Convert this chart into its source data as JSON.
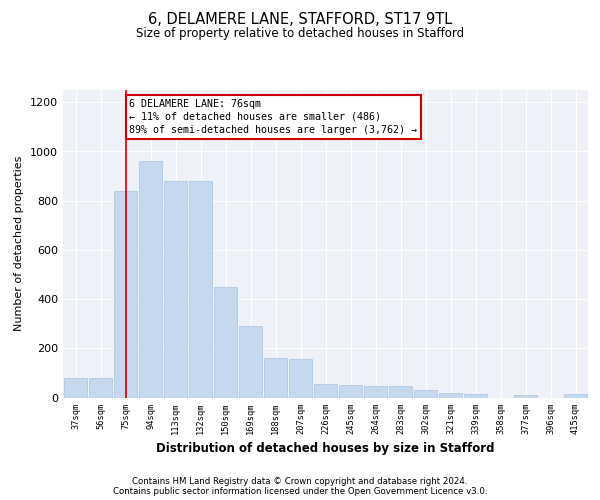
{
  "title": "6, DELAMERE LANE, STAFFORD, ST17 9TL",
  "subtitle": "Size of property relative to detached houses in Stafford",
  "xlabel": "Distribution of detached houses by size in Stafford",
  "ylabel": "Number of detached properties",
  "categories": [
    "37sqm",
    "56sqm",
    "75sqm",
    "94sqm",
    "113sqm",
    "132sqm",
    "150sqm",
    "169sqm",
    "188sqm",
    "207sqm",
    "226sqm",
    "245sqm",
    "264sqm",
    "283sqm",
    "302sqm",
    "321sqm",
    "339sqm",
    "358sqm",
    "377sqm",
    "396sqm",
    "415sqm"
  ],
  "values": [
    80,
    80,
    840,
    960,
    880,
    880,
    450,
    290,
    160,
    155,
    55,
    50,
    45,
    45,
    30,
    20,
    15,
    0,
    10,
    0,
    15
  ],
  "bar_color": "#c5d8ed",
  "bar_edge_color": "#a8c4de",
  "vline_x_index": 2,
  "vline_color": "#cc0000",
  "annotation_text": "6 DELAMERE LANE: 76sqm\n← 11% of detached houses are smaller (486)\n89% of semi-detached houses are larger (3,762) →",
  "annotation_box_color": "#ffffff",
  "annotation_box_edge_color": "#cc0000",
  "ylim": [
    0,
    1250
  ],
  "yticks": [
    0,
    200,
    400,
    600,
    800,
    1000,
    1200
  ],
  "bg_color": "#eef2f8",
  "footer_line1": "Contains HM Land Registry data © Crown copyright and database right 2024.",
  "footer_line2": "Contains public sector information licensed under the Open Government Licence v3.0."
}
